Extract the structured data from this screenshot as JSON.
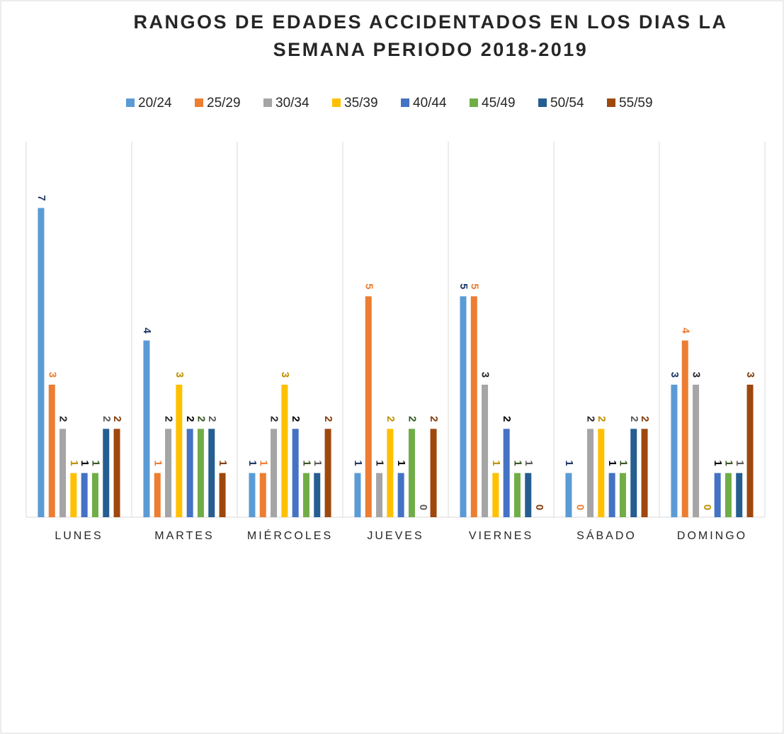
{
  "chart_data": {
    "type": "bar",
    "title": [
      "RANGOS DE EDADES ACCIDENTADOS EN LOS DIAS LA",
      "SEMANA PERIODO 2018-2019"
    ],
    "categories": [
      "LUNES",
      "MARTES",
      "MIÉRCOLES",
      "JUEVES",
      "VIERNES",
      "SÁBADO",
      "DOMINGO"
    ],
    "ylim": [
      0,
      8.5
    ],
    "series": [
      {
        "name": "20/24",
        "color": "#5b9bd5",
        "label_color": "#1f3864",
        "values": [
          7,
          4,
          1,
          1,
          5,
          1,
          3
        ]
      },
      {
        "name": "25/29",
        "color": "#ed7d31",
        "label_color": "#ed7d31",
        "values": [
          3,
          1,
          1,
          5,
          5,
          0,
          4
        ]
      },
      {
        "name": "30/34",
        "color": "#a5a5a5",
        "label_color": "#262626",
        "values": [
          2,
          2,
          2,
          1,
          3,
          2,
          3
        ]
      },
      {
        "name": "35/39",
        "color": "#ffc000",
        "label_color": "#bf9000",
        "values": [
          1,
          3,
          3,
          2,
          1,
          2,
          0
        ]
      },
      {
        "name": "40/44",
        "color": "#4472c4",
        "label_color": "#000000",
        "values": [
          1,
          2,
          2,
          1,
          2,
          1,
          1
        ]
      },
      {
        "name": "45/49",
        "color": "#70ad47",
        "label_color": "#375623",
        "values": [
          1,
          2,
          1,
          2,
          1,
          1,
          1
        ]
      },
      {
        "name": "50/54",
        "color": "#255e91",
        "label_color": "#595959",
        "values": [
          2,
          2,
          1,
          0,
          1,
          2,
          1
        ]
      },
      {
        "name": "55/59",
        "color": "#9e480e",
        "label_color": "#843c0c",
        "values": [
          2,
          1,
          2,
          2,
          0,
          2,
          3
        ]
      }
    ]
  }
}
